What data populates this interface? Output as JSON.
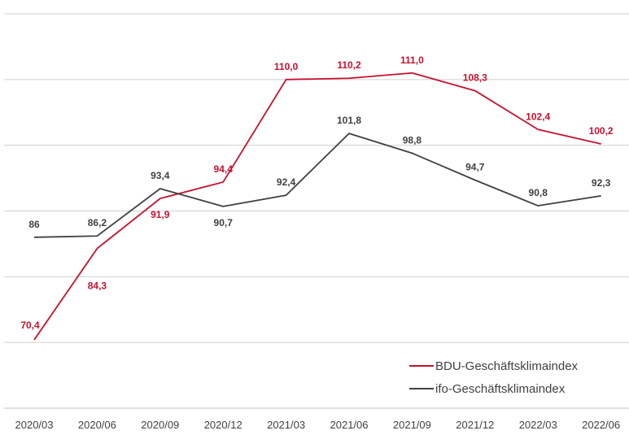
{
  "chart_data": {
    "type": "line",
    "categories": [
      "2020/03",
      "2020/06",
      "2020/09",
      "2020/12",
      "2021/03",
      "2021/06",
      "2021/09",
      "2021/12",
      "2022/03",
      "2022/06"
    ],
    "series": [
      {
        "name": "BDU-Geschäftsklimaindex",
        "color": "#c8102e",
        "values": [
          70.4,
          84.3,
          91.9,
          94.4,
          110.0,
          110.2,
          111.0,
          108.3,
          102.4,
          100.2
        ],
        "labels": [
          "70,4",
          "84,3",
          "91,9",
          "94,4",
          "110,0",
          "110,2",
          "111,0",
          "108,3",
          "102,4",
          "100,2"
        ]
      },
      {
        "name": "ifo-Geschäftsklimaindex",
        "color": "#404040",
        "values": [
          86,
          86.2,
          93.4,
          90.7,
          92.4,
          101.8,
          98.8,
          94.7,
          90.8,
          92.3
        ],
        "labels": [
          "86",
          "86,2",
          "93,4",
          "90,7",
          "92,4",
          "101,8",
          "98,8",
          "94,7",
          "90,8",
          "92,3"
        ]
      }
    ],
    "ylim": [
      60,
      120
    ],
    "grid": true,
    "legend": "bottom-right",
    "title": "",
    "xlabel": "",
    "ylabel": ""
  }
}
